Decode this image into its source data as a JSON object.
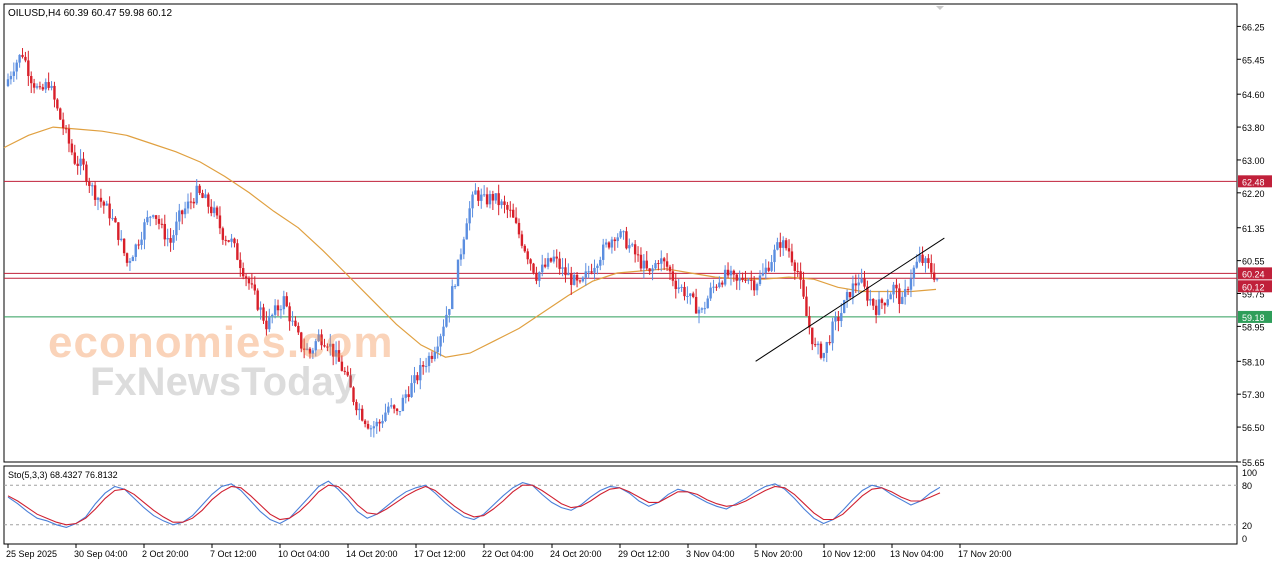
{
  "header": {
    "symbol_info": "OILUSD,H4  60.39 60.47 59.98 60.12"
  },
  "colors": {
    "bull": "#5b8ee0",
    "bear": "#d8202a",
    "ma": "#e0a040",
    "resistance": "#c0203a",
    "support": "#2e9e5a",
    "trendline": "#000000",
    "stoch_main": "#4a7fd8",
    "stoch_signal": "#d02030"
  },
  "watermark": {
    "line1": "economies.com",
    "line2": "FxNewsToday"
  },
  "chart_data": [
    {
      "type": "candlestick",
      "title": "OILUSD,H4",
      "ylim": [
        55.65,
        66.6
      ],
      "y_ticks": [
        "66.25",
        "65.45",
        "64.60",
        "63.80",
        "63.00",
        "62.20",
        "61.35",
        "60.55",
        "59.75",
        "58.95",
        "58.10",
        "57.30",
        "56.50",
        "55.65"
      ],
      "x_ticks": [
        "25 Sep 2025",
        "30 Sep 04:00",
        "2 Oct 20:00",
        "7 Oct 12:00",
        "10 Oct 04:00",
        "14 Oct 20:00",
        "17 Oct 12:00",
        "22 Oct 04:00",
        "24 Oct 20:00",
        "29 Oct 12:00",
        "3 Nov 04:00",
        "5 Nov 20:00",
        "10 Nov 12:00",
        "13 Nov 04:00",
        "17 Nov 20:00"
      ],
      "price_lines": [
        {
          "label": "62.48",
          "value": 62.48,
          "color": "#c0203a"
        },
        {
          "label": "60.24",
          "value": 60.24,
          "color": "#c0203a"
        },
        {
          "label": "60.12",
          "value": 60.12,
          "color": "#c0203a"
        },
        {
          "label": "59.18",
          "value": 59.18,
          "color": "#2e9e5a"
        }
      ],
      "trendline": {
        "from": [
          206,
          58.1
        ],
        "to": [
          258,
          61.1
        ]
      },
      "closes": [
        64.8,
        65.3,
        65.6,
        65.0,
        64.6,
        64.9,
        64.2,
        63.6,
        63.0,
        62.8,
        62.3,
        62.0,
        61.7,
        61.2,
        60.5,
        60.9,
        61.4,
        61.8,
        61.3,
        61.0,
        61.6,
        61.9,
        62.2,
        62.0,
        61.7,
        61.2,
        61.0,
        60.5,
        60.0,
        59.5,
        59.0,
        59.3,
        59.6,
        59.0,
        58.5,
        58.3,
        58.7,
        58.6,
        58.2,
        57.8,
        57.2,
        56.8,
        56.5,
        56.6,
        57.0,
        56.8,
        57.3,
        57.6,
        58.0,
        58.3,
        58.8,
        59.5,
        60.4,
        61.6,
        62.2,
        62.0,
        62.1,
        61.9,
        61.7,
        61.2,
        60.7,
        60.2,
        60.4,
        60.6,
        60.3,
        60.1,
        59.9,
        60.3,
        60.6,
        60.9,
        61.2,
        61.1,
        60.8,
        60.5,
        60.2,
        60.6,
        60.4,
        60.0,
        59.8,
        59.5,
        59.3,
        59.8,
        60.1,
        60.2,
        60.0,
        60.2,
        60.0,
        60.2,
        60.6,
        61.0,
        60.8,
        60.3,
        59.2,
        58.4,
        58.3,
        58.9,
        59.3,
        59.8,
        60.1,
        59.7,
        59.4,
        59.6,
        59.9,
        59.5,
        60.2,
        60.6,
        60.4,
        60.12
      ],
      "ma_values": [
        63.3,
        63.6,
        63.8,
        63.75,
        63.7,
        63.6,
        63.4,
        63.2,
        62.95,
        62.6,
        62.2,
        61.75,
        61.35,
        60.8,
        60.2,
        59.6,
        59.0,
        58.5,
        58.2,
        58.3,
        58.6,
        58.9,
        59.3,
        59.7,
        60.05,
        60.25,
        60.3,
        60.35,
        60.25,
        60.15,
        60.1,
        60.1,
        60.15,
        60.1,
        59.9,
        59.8,
        59.8,
        59.8,
        59.85
      ]
    },
    {
      "type": "line",
      "title": "Sto(5,3,3) 68.4327 76.8132",
      "ylim": [
        0,
        100
      ],
      "y_ticks": [
        "100",
        "80",
        "20",
        "0"
      ],
      "levels": [
        80,
        20
      ],
      "series": [
        {
          "name": "main",
          "values": [
            62,
            52,
            40,
            30,
            26,
            20,
            16,
            22,
            32,
            52,
            68,
            78,
            74,
            60,
            46,
            34,
            26,
            20,
            24,
            34,
            50,
            66,
            78,
            82,
            72,
            56,
            40,
            28,
            22,
            30,
            46,
            62,
            78,
            86,
            74,
            58,
            40,
            30,
            36,
            48,
            60,
            70,
            76,
            80,
            68,
            54,
            42,
            32,
            28,
            36,
            50,
            64,
            76,
            84,
            80,
            66,
            54,
            46,
            42,
            50,
            62,
            72,
            78,
            76,
            68,
            56,
            48,
            54,
            66,
            74,
            70,
            62,
            54,
            48,
            44,
            52,
            60,
            70,
            78,
            82,
            74,
            60,
            44,
            30,
            22,
            28,
            42,
            58,
            72,
            80,
            76,
            66,
            58,
            50,
            56,
            68,
            76.8
          ]
        },
        {
          "name": "signal",
          "values": [
            64,
            56,
            46,
            36,
            30,
            24,
            20,
            22,
            30,
            44,
            60,
            72,
            74,
            66,
            54,
            42,
            32,
            24,
            24,
            30,
            42,
            58,
            70,
            78,
            76,
            64,
            50,
            36,
            28,
            30,
            40,
            54,
            70,
            80,
            78,
            66,
            50,
            38,
            36,
            44,
            54,
            64,
            72,
            78,
            72,
            60,
            48,
            38,
            32,
            34,
            44,
            56,
            70,
            80,
            80,
            72,
            62,
            52,
            46,
            48,
            56,
            66,
            74,
            76,
            70,
            62,
            54,
            54,
            62,
            70,
            70,
            66,
            58,
            52,
            48,
            50,
            56,
            64,
            72,
            78,
            76,
            66,
            52,
            38,
            28,
            28,
            36,
            50,
            64,
            74,
            76,
            70,
            62,
            56,
            56,
            62,
            68.4
          ]
        }
      ]
    }
  ]
}
